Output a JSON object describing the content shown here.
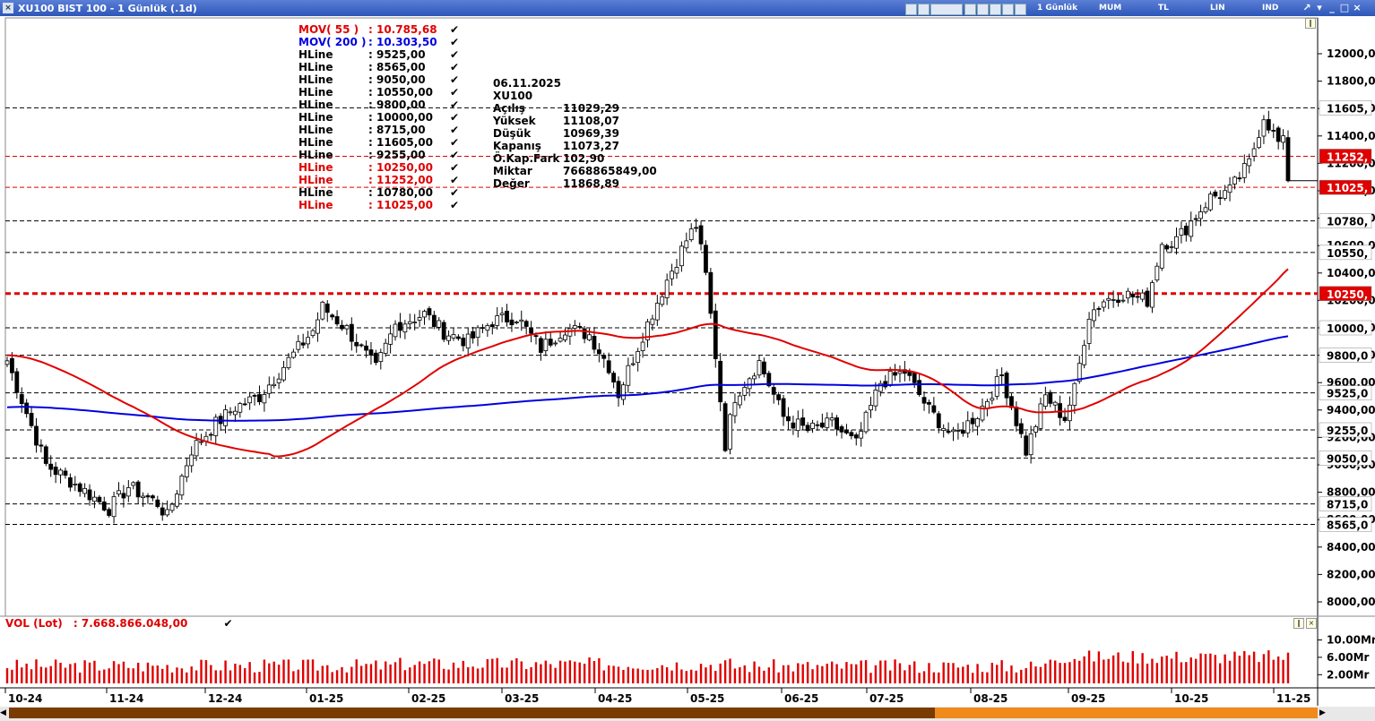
{
  "window": {
    "title": "XU100 BIST 100 - 1 Günlük (.1d)",
    "period_label": "1 Günlük",
    "toolbar_labels": [
      "MUM",
      "TL",
      "LIN",
      "IND"
    ],
    "close_glyph": "×"
  },
  "legend": {
    "items": [
      {
        "name": "MOV( 55 )",
        "value": ": 10.785,68",
        "color": "#e00000"
      },
      {
        "name": "MOV( 200 )",
        "value": ": 10.303,50",
        "color": "#0000e0"
      },
      {
        "name": "HLine",
        "value": ": 9525,00",
        "color": "#000000"
      },
      {
        "name": "HLine",
        "value": ": 8565,00",
        "color": "#000000"
      },
      {
        "name": "HLine",
        "value": ": 9050,00",
        "color": "#000000"
      },
      {
        "name": "HLine",
        "value": ": 10550,00",
        "color": "#000000"
      },
      {
        "name": "HLine",
        "value": ": 9800,00",
        "color": "#000000"
      },
      {
        "name": "HLine",
        "value": ": 10000,00",
        "color": "#000000"
      },
      {
        "name": "HLine",
        "value": ": 8715,00",
        "color": "#000000"
      },
      {
        "name": "HLine",
        "value": ": 11605,00",
        "color": "#000000"
      },
      {
        "name": "HLine",
        "value": ": 9255,00",
        "color": "#000000"
      },
      {
        "name": "HLine",
        "value": ": 10250,00",
        "color": "#e00000"
      },
      {
        "name": "HLine",
        "value": ": 11252,00",
        "color": "#e00000"
      },
      {
        "name": "HLine",
        "value": ": 10780,00",
        "color": "#000000"
      },
      {
        "name": "HLine",
        "value": ": 11025,00",
        "color": "#e00000"
      }
    ],
    "check_glyph": "✔"
  },
  "info_box": {
    "date": "06.11.2025",
    "symbol": "XU100",
    "rows": [
      {
        "label": "Açılış",
        "value": "11029,29"
      },
      {
        "label": "Yüksek",
        "value": "11108,07"
      },
      {
        "label": "Düşük",
        "value": "10969,39"
      },
      {
        "label": "Kapanış",
        "value": "11073,27"
      },
      {
        "label": "Ö.Kap.Fark",
        "value": "102,90"
      },
      {
        "label": "Miktar",
        "value": "7668865849,00"
      },
      {
        "label": "Değer",
        "value": "11868,89"
      }
    ]
  },
  "volume_legend": {
    "label": "VOL (Lot)",
    "value": ": 7.668.866.048,00"
  },
  "chart_data": {
    "type": "candlestick",
    "symbol": "XU100",
    "ylim": [
      7900,
      12200
    ],
    "y_ticks": [
      8000,
      8200,
      8400,
      8600,
      8800,
      9000,
      9200,
      9400,
      9600,
      9800,
      10000,
      10200,
      10400,
      10600,
      10800,
      11000,
      11200,
      11400,
      11600,
      11800,
      12000
    ],
    "y_tick_labels": [
      "8000,00",
      "8200,00",
      "8400,00",
      "8600,00",
      "8800,00",
      "9000,00",
      "9200,00",
      "9400,00",
      "9600,00",
      "9800,00",
      "10000,00",
      "10200,00",
      "10400,00",
      "10600,00",
      "10800,00",
      "11000,00",
      "11200,00",
      "11400,00",
      "11600,00",
      "11800,00",
      "12000,00"
    ],
    "x_labels": [
      "10-24",
      "11-24",
      "12-24",
      "01-25",
      "02-25",
      "03-25",
      "04-25",
      "05-25",
      "06-25",
      "07-25",
      "08-25",
      "09-25",
      "10-25",
      "11-25"
    ],
    "candle_count": 265,
    "hlines": [
      {
        "value": 11605,
        "label": "11605,",
        "color": "#000000",
        "label_bg": "#ffffff"
      },
      {
        "value": 11252,
        "label": "11252,",
        "color": "#e00000",
        "label_bg": "#e00000"
      },
      {
        "value": 11025,
        "label": "11025,",
        "color": "#e00000",
        "label_bg": "#e00000"
      },
      {
        "value": 10780,
        "label": "10780,",
        "color": "#000000",
        "label_bg": "#ffffff"
      },
      {
        "value": 10550,
        "label": "10550,",
        "color": "#000000",
        "label_bg": "#ffffff"
      },
      {
        "value": 10250,
        "label": "10250,",
        "color": "#e00000",
        "label_bg": "#e00000",
        "thick": true
      },
      {
        "value": 10000,
        "label": "10000,",
        "color": "#000000",
        "label_bg": "#ffffff"
      },
      {
        "value": 9800,
        "label": "9800,0",
        "color": "#000000",
        "label_bg": "#ffffff"
      },
      {
        "value": 9525,
        "label": "9525,0",
        "color": "#000000",
        "label_bg": "#ffffff"
      },
      {
        "value": 9255,
        "label": "9255,0",
        "color": "#000000",
        "label_bg": "#ffffff"
      },
      {
        "value": 9050,
        "label": "9050,0",
        "color": "#000000",
        "label_bg": "#ffffff"
      },
      {
        "value": 8715,
        "label": "8715,0",
        "color": "#000000",
        "label_bg": "#ffffff"
      },
      {
        "value": 8565,
        "label": "8565,0",
        "color": "#000000",
        "label_bg": "#ffffff"
      }
    ],
    "close_anchors": [
      [
        0,
        9760
      ],
      [
        8,
        9000
      ],
      [
        14,
        8860
      ],
      [
        21,
        8680
      ],
      [
        25,
        8840
      ],
      [
        31,
        8720
      ],
      [
        33,
        8620
      ],
      [
        38,
        9110
      ],
      [
        43,
        9300
      ],
      [
        47,
        9420
      ],
      [
        52,
        9500
      ],
      [
        57,
        9720
      ],
      [
        63,
        9980
      ],
      [
        65,
        10150
      ],
      [
        70,
        9990
      ],
      [
        76,
        9700
      ],
      [
        80,
        10020
      ],
      [
        86,
        10100
      ],
      [
        90,
        9970
      ],
      [
        95,
        9900
      ],
      [
        100,
        10050
      ],
      [
        105,
        10080
      ],
      [
        110,
        9850
      ],
      [
        115,
        10000
      ],
      [
        120,
        9950
      ],
      [
        124,
        9720
      ],
      [
        126,
        9520
      ],
      [
        131,
        9950
      ],
      [
        136,
        10350
      ],
      [
        140,
        10640
      ],
      [
        142,
        10750
      ],
      [
        144,
        10380
      ],
      [
        146,
        9800
      ],
      [
        148,
        9150
      ],
      [
        150,
        9500
      ],
      [
        155,
        9750
      ],
      [
        160,
        9350
      ],
      [
        165,
        9250
      ],
      [
        170,
        9300
      ],
      [
        175,
        9150
      ],
      [
        180,
        9600
      ],
      [
        185,
        9680
      ],
      [
        190,
        9400
      ],
      [
        195,
        9200
      ],
      [
        200,
        9370
      ],
      [
        205,
        9650
      ],
      [
        210,
        9100
      ],
      [
        214,
        9500
      ],
      [
        218,
        9340
      ],
      [
        220,
        9550
      ],
      [
        223,
        10100
      ],
      [
        226,
        10200
      ],
      [
        230,
        10250
      ],
      [
        235,
        10200
      ],
      [
        238,
        10620
      ],
      [
        241,
        10640
      ],
      [
        245,
        10820
      ],
      [
        248,
        10950
      ],
      [
        252,
        11000
      ],
      [
        256,
        11200
      ],
      [
        259,
        11550
      ],
      [
        262,
        11350
      ]
    ],
    "close_anchors_note_exclude": true,
    "series_ma": [
      {
        "name": "MOV( 55 )",
        "color": "#e00000",
        "last": 10785.68
      },
      {
        "name": "MOV( 200 )",
        "color": "#0000e0",
        "last": 10303.5
      }
    ],
    "volume": {
      "y_ticks": [
        2,
        6,
        10
      ],
      "y_tick_labels": [
        "2.00Mr",
        "6.00Mr",
        "10.00Mr"
      ],
      "ylim": [
        0,
        13
      ],
      "color": "#e00000",
      "last": 7668866048
    }
  }
}
